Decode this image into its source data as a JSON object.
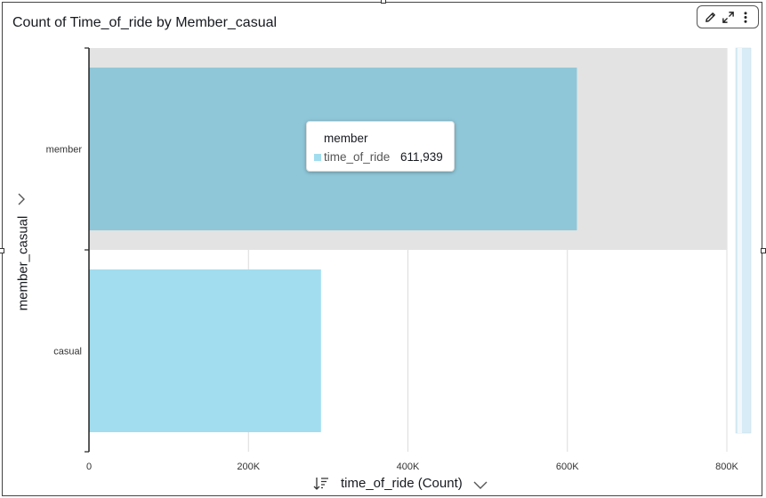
{
  "title": "Count of Time_of_ride by Member_casual",
  "toolbar": {
    "icons": [
      "pencil-icon",
      "expand-icon",
      "more-vertical-icon"
    ]
  },
  "chart_data": {
    "type": "bar",
    "orientation": "horizontal",
    "categories": [
      "member",
      "casual"
    ],
    "values": [
      611939,
      291000
    ],
    "series": [
      {
        "name": "time_of_ride",
        "values": [
          611939,
          291000
        ]
      }
    ],
    "xlabel": "time_of_ride (Count)",
    "ylabel": "member_casual",
    "xlim": [
      0,
      800000
    ],
    "xticks": [
      "0",
      "200K",
      "400K",
      "600K",
      "800K"
    ],
    "xtick_values": [
      0,
      200000,
      400000,
      600000,
      800000
    ],
    "grid": true,
    "bar_colors": {
      "member": "#8fc7d9",
      "casual": "#a1ddef"
    },
    "highlight_category": "member"
  },
  "tooltip": {
    "title": "member",
    "series": "time_of_ride",
    "value": "611,939",
    "swatch_color": "#a1ddef"
  },
  "colors": {
    "highlight_band": "#e3e3e3",
    "grid": "#dcdcdc",
    "axis": "#222222",
    "scroll_track": "#d7ecf6"
  }
}
